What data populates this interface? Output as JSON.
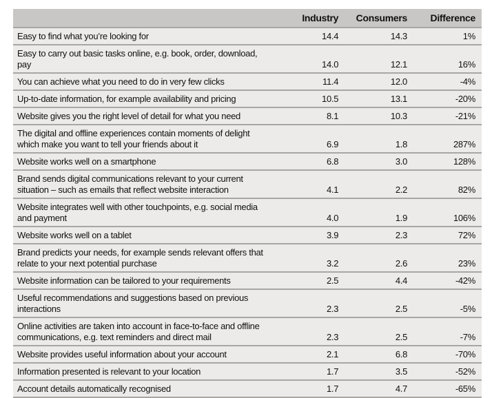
{
  "table": {
    "headers": [
      "",
      "Industry",
      "Consumers",
      "Difference"
    ],
    "rows": [
      {
        "label": "Easy to find what you’re looking for",
        "industry": "14.4",
        "consumers": "14.3",
        "difference": "1%"
      },
      {
        "label": "Easy to carry out basic tasks online, e.g. book, order, download, pay",
        "industry": "14.0",
        "consumers": "12.1",
        "difference": "16%"
      },
      {
        "label": "You can achieve what you need to do in very few clicks",
        "industry": "11.4",
        "consumers": "12.0",
        "difference": "-4%"
      },
      {
        "label": "Up-to-date information, for example availability and pricing",
        "industry": "10.5",
        "consumers": "13.1",
        "difference": "-20%"
      },
      {
        "label": "Website gives you the right level of detail for what you need",
        "industry": "8.1",
        "consumers": "10.3",
        "difference": "-21%"
      },
      {
        "label": "The digital and offline experiences contain moments of delight which make you want to tell your friends about it",
        "industry": "6.9",
        "consumers": "1.8",
        "difference": "287%"
      },
      {
        "label": "Website works well on a smartphone",
        "industry": "6.8",
        "consumers": "3.0",
        "difference": "128%"
      },
      {
        "label": "Brand sends digital communications relevant to your current situation – such as emails that reflect website interaction",
        "industry": "4.1",
        "consumers": "2.2",
        "difference": "82%"
      },
      {
        "label": "Website integrates well with other touchpoints, e.g. social media and payment",
        "industry": "4.0",
        "consumers": "1.9",
        "difference": "106%"
      },
      {
        "label": "Website works well on a tablet",
        "industry": "3.9",
        "consumers": "2.3",
        "difference": "72%"
      },
      {
        "label": "Brand predicts your needs, for example sends relevant offers that relate to your next potential purchase",
        "industry": "3.2",
        "consumers": "2.6",
        "difference": "23%"
      },
      {
        "label": "Website information can be tailored to your requirements",
        "industry": "2.5",
        "consumers": "4.4",
        "difference": "-42%"
      },
      {
        "label": "Useful recommendations and suggestions based on previous interactions",
        "industry": "2.3",
        "consumers": "2.5",
        "difference": "-5%"
      },
      {
        "label": "Online activities are taken into account in face-to-face and offline communications, e.g. text reminders and direct mail",
        "industry": "2.3",
        "consumers": "2.5",
        "difference": "-7%"
      },
      {
        "label": "Website provides useful information about your account",
        "industry": "2.1",
        "consumers": "6.8",
        "difference": "-70%"
      },
      {
        "label": "Information presented is relevant to your location",
        "industry": "1.7",
        "consumers": "3.5",
        "difference": "-52%"
      },
      {
        "label": "Account details automatically recognised",
        "industry": "1.7",
        "consumers": "4.7",
        "difference": "-65%"
      }
    ]
  }
}
